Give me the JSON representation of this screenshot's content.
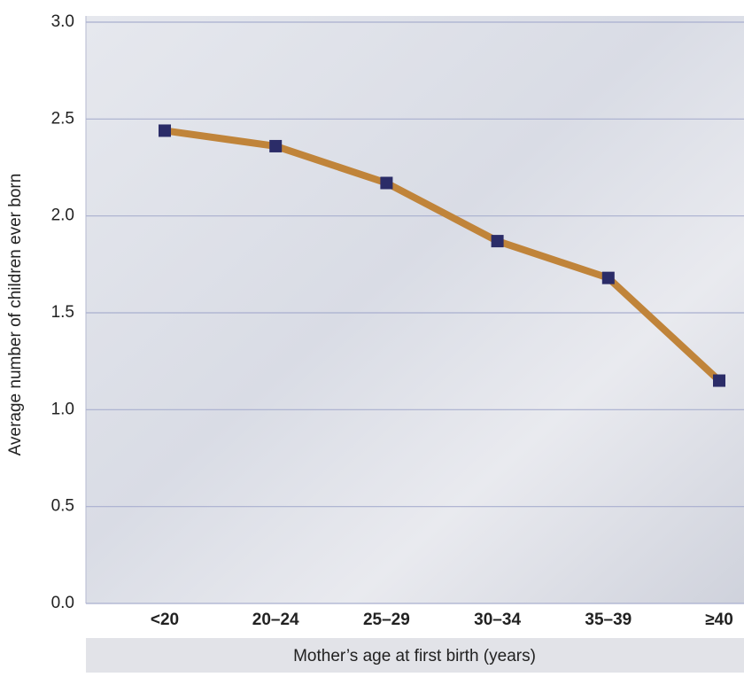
{
  "chart_data": {
    "type": "line",
    "x_label": "Mother’s age at first birth (years)",
    "y_label": "Average number of children ever born",
    "categories": [
      "<20",
      "20–24",
      "25–29",
      "30–34",
      "35–39",
      "≥40"
    ],
    "series": [
      {
        "name": "Average number of children ever born",
        "color": "#c0843a",
        "marker_color": "#2b2c68",
        "values": [
          2.44,
          2.36,
          2.17,
          1.87,
          1.68,
          1.15
        ]
      }
    ],
    "ylim": [
      0,
      3
    ],
    "yticks": [
      {
        "value": 0,
        "label": "0.0"
      },
      0.5,
      {
        "value": 1,
        "label": "1.0"
      },
      1.5,
      {
        "value": 2,
        "label": "2.0"
      },
      2.5,
      {
        "value": 3,
        "label": "3.0"
      }
    ],
    "grid": true
  }
}
